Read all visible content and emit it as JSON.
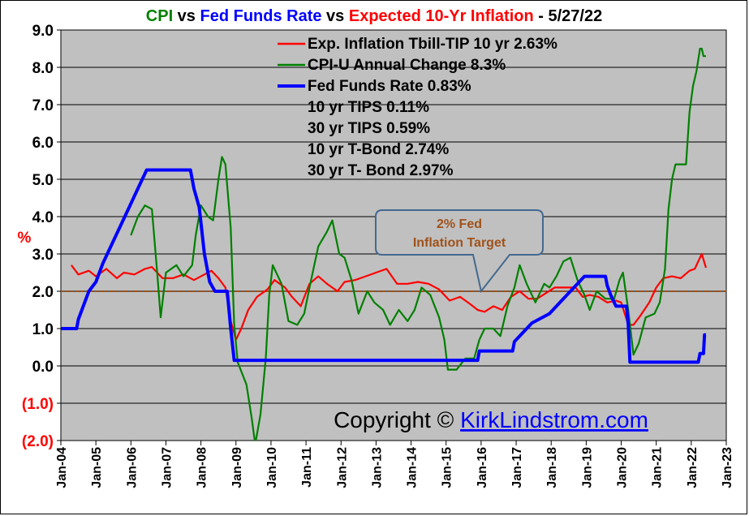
{
  "chart_data": {
    "type": "line",
    "title_parts": [
      {
        "text": "CPI",
        "color": "#008000"
      },
      {
        "text": " vs ",
        "color": "#000000"
      },
      {
        "text": "Fed Funds Rate",
        "color": "#0000ff"
      },
      {
        "text": " vs ",
        "color": "#000000"
      },
      {
        "text": "Expected 10-Yr Inflation",
        "color": "#ff0000"
      },
      {
        "text": " - 5/27/22",
        "color": "#000000"
      }
    ],
    "ylabel": "%",
    "ylim": [
      -2.0,
      9.0
    ],
    "yticks": [
      {
        "value": 9,
        "label": "9.0"
      },
      {
        "value": 8,
        "label": "8.0"
      },
      {
        "value": 7,
        "label": "7.0"
      },
      {
        "value": 6,
        "label": "6.0"
      },
      {
        "value": 5,
        "label": "5.0"
      },
      {
        "value": 4,
        "label": "4.0"
      },
      {
        "value": 3,
        "label": "3.0"
      },
      {
        "value": 2,
        "label": "2.0"
      },
      {
        "value": 1,
        "label": "1.0"
      },
      {
        "value": 0,
        "label": "0.0"
      },
      {
        "value": -1,
        "label": "(1.0)"
      },
      {
        "value": -2,
        "label": "(2.0)"
      }
    ],
    "xlim": [
      2004.0,
      2023.0
    ],
    "xticks": [
      {
        "value": 2004,
        "label": "Jan-04"
      },
      {
        "value": 2005,
        "label": "Jan-05"
      },
      {
        "value": 2006,
        "label": "Jan-06"
      },
      {
        "value": 2007,
        "label": "Jan-07"
      },
      {
        "value": 2008,
        "label": "Jan-08"
      },
      {
        "value": 2009,
        "label": "Jan-09"
      },
      {
        "value": 2010,
        "label": "Jan-10"
      },
      {
        "value": 2011,
        "label": "Jan-11"
      },
      {
        "value": 2012,
        "label": "Jan-12"
      },
      {
        "value": 2013,
        "label": "Jan-13"
      },
      {
        "value": 2014,
        "label": "Jan-14"
      },
      {
        "value": 2015,
        "label": "Jan-15"
      },
      {
        "value": 2016,
        "label": "Jan-16"
      },
      {
        "value": 2017,
        "label": "Jan-17"
      },
      {
        "value": 2018,
        "label": "Jan-18"
      },
      {
        "value": 2019,
        "label": "Jan-19"
      },
      {
        "value": 2020,
        "label": "Jan-20"
      },
      {
        "value": 2021,
        "label": "Jan-21"
      },
      {
        "value": 2022,
        "label": "Jan-22"
      },
      {
        "value": 2023,
        "label": "Jan-23"
      }
    ],
    "series": [
      {
        "name": "Exp. Inflation Tbill-TIP 10 yr 2.63%",
        "color": "#ff0000",
        "points": [
          [
            2004.3,
            2.7
          ],
          [
            2004.5,
            2.45
          ],
          [
            2004.8,
            2.55
          ],
          [
            2005.0,
            2.4
          ],
          [
            2005.3,
            2.6
          ],
          [
            2005.6,
            2.35
          ],
          [
            2005.8,
            2.5
          ],
          [
            2006.1,
            2.45
          ],
          [
            2006.4,
            2.6
          ],
          [
            2006.6,
            2.65
          ],
          [
            2006.9,
            2.35
          ],
          [
            2007.2,
            2.35
          ],
          [
            2007.5,
            2.45
          ],
          [
            2007.8,
            2.3
          ],
          [
            2008.1,
            2.45
          ],
          [
            2008.3,
            2.55
          ],
          [
            2008.5,
            2.35
          ],
          [
            2008.7,
            2.1
          ],
          [
            2008.85,
            1.2
          ],
          [
            2009.0,
            0.7
          ],
          [
            2009.15,
            1.0
          ],
          [
            2009.35,
            1.5
          ],
          [
            2009.6,
            1.85
          ],
          [
            2009.9,
            2.05
          ],
          [
            2010.1,
            2.3
          ],
          [
            2010.4,
            2.1
          ],
          [
            2010.6,
            1.85
          ],
          [
            2010.85,
            1.6
          ],
          [
            2011.1,
            2.2
          ],
          [
            2011.35,
            2.4
          ],
          [
            2011.6,
            2.2
          ],
          [
            2011.9,
            2.0
          ],
          [
            2012.1,
            2.25
          ],
          [
            2012.4,
            2.3
          ],
          [
            2012.7,
            2.4
          ],
          [
            2013.0,
            2.5
          ],
          [
            2013.3,
            2.6
          ],
          [
            2013.6,
            2.2
          ],
          [
            2013.9,
            2.2
          ],
          [
            2014.2,
            2.25
          ],
          [
            2014.5,
            2.2
          ],
          [
            2014.8,
            2.05
          ],
          [
            2015.1,
            1.75
          ],
          [
            2015.4,
            1.85
          ],
          [
            2015.7,
            1.65
          ],
          [
            2015.9,
            1.5
          ],
          [
            2016.1,
            1.45
          ],
          [
            2016.35,
            1.6
          ],
          [
            2016.6,
            1.5
          ],
          [
            2016.85,
            1.85
          ],
          [
            2017.1,
            2.0
          ],
          [
            2017.35,
            1.8
          ],
          [
            2017.6,
            1.8
          ],
          [
            2017.85,
            1.95
          ],
          [
            2018.1,
            2.1
          ],
          [
            2018.4,
            2.1
          ],
          [
            2018.7,
            2.1
          ],
          [
            2018.9,
            1.85
          ],
          [
            2019.1,
            1.9
          ],
          [
            2019.35,
            1.85
          ],
          [
            2019.6,
            1.7
          ],
          [
            2019.85,
            1.75
          ],
          [
            2020.0,
            1.7
          ],
          [
            2020.2,
            1.1
          ],
          [
            2020.35,
            1.1
          ],
          [
            2020.55,
            1.35
          ],
          [
            2020.8,
            1.7
          ],
          [
            2021.0,
            2.1
          ],
          [
            2021.2,
            2.35
          ],
          [
            2021.45,
            2.4
          ],
          [
            2021.7,
            2.35
          ],
          [
            2021.95,
            2.55
          ],
          [
            2022.1,
            2.6
          ],
          [
            2022.25,
            2.9
          ],
          [
            2022.3,
            3.0
          ],
          [
            2022.42,
            2.63
          ]
        ]
      },
      {
        "name": "CPI-U Annual Change 8.3%",
        "color": "#008000",
        "points": [
          [
            2006.0,
            3.5
          ],
          [
            2006.2,
            4.0
          ],
          [
            2006.4,
            4.3
          ],
          [
            2006.6,
            4.2
          ],
          [
            2006.75,
            2.5
          ],
          [
            2006.85,
            1.3
          ],
          [
            2007.0,
            2.5
          ],
          [
            2007.3,
            2.7
          ],
          [
            2007.5,
            2.4
          ],
          [
            2007.75,
            2.7
          ],
          [
            2007.85,
            3.5
          ],
          [
            2008.0,
            4.3
          ],
          [
            2008.2,
            4.0
          ],
          [
            2008.35,
            3.9
          ],
          [
            2008.5,
            5.0
          ],
          [
            2008.6,
            5.6
          ],
          [
            2008.7,
            5.4
          ],
          [
            2008.85,
            3.7
          ],
          [
            2008.95,
            1.1
          ],
          [
            2009.05,
            0.1
          ],
          [
            2009.3,
            -0.5
          ],
          [
            2009.45,
            -1.4
          ],
          [
            2009.55,
            -2.1
          ],
          [
            2009.7,
            -1.3
          ],
          [
            2009.85,
            0.2
          ],
          [
            2009.95,
            1.9
          ],
          [
            2010.05,
            2.7
          ],
          [
            2010.3,
            2.2
          ],
          [
            2010.5,
            1.2
          ],
          [
            2010.75,
            1.1
          ],
          [
            2010.95,
            1.4
          ],
          [
            2011.1,
            2.1
          ],
          [
            2011.35,
            3.2
          ],
          [
            2011.6,
            3.6
          ],
          [
            2011.75,
            3.9
          ],
          [
            2011.95,
            3.0
          ],
          [
            2012.1,
            2.9
          ],
          [
            2012.3,
            2.3
          ],
          [
            2012.5,
            1.4
          ],
          [
            2012.75,
            2.0
          ],
          [
            2012.95,
            1.7
          ],
          [
            2013.2,
            1.5
          ],
          [
            2013.4,
            1.1
          ],
          [
            2013.65,
            1.5
          ],
          [
            2013.9,
            1.2
          ],
          [
            2014.1,
            1.5
          ],
          [
            2014.3,
            2.1
          ],
          [
            2014.55,
            1.9
          ],
          [
            2014.8,
            1.3
          ],
          [
            2014.95,
            0.7
          ],
          [
            2015.05,
            -0.1
          ],
          [
            2015.3,
            -0.1
          ],
          [
            2015.55,
            0.2
          ],
          [
            2015.8,
            0.2
          ],
          [
            2015.95,
            0.7
          ],
          [
            2016.1,
            1.0
          ],
          [
            2016.35,
            1.0
          ],
          [
            2016.55,
            0.8
          ],
          [
            2016.75,
            1.6
          ],
          [
            2016.95,
            2.1
          ],
          [
            2017.1,
            2.7
          ],
          [
            2017.3,
            2.2
          ],
          [
            2017.55,
            1.7
          ],
          [
            2017.8,
            2.2
          ],
          [
            2017.95,
            2.1
          ],
          [
            2018.15,
            2.4
          ],
          [
            2018.35,
            2.8
          ],
          [
            2018.55,
            2.9
          ],
          [
            2018.75,
            2.3
          ],
          [
            2018.95,
            1.9
          ],
          [
            2019.1,
            1.5
          ],
          [
            2019.3,
            2.0
          ],
          [
            2019.55,
            1.8
          ],
          [
            2019.8,
            1.8
          ],
          [
            2019.95,
            2.3
          ],
          [
            2020.05,
            2.5
          ],
          [
            2020.2,
            1.5
          ],
          [
            2020.35,
            0.3
          ],
          [
            2020.5,
            0.6
          ],
          [
            2020.7,
            1.3
          ],
          [
            2020.95,
            1.4
          ],
          [
            2021.1,
            1.7
          ],
          [
            2021.25,
            2.6
          ],
          [
            2021.35,
            4.2
          ],
          [
            2021.45,
            5.0
          ],
          [
            2021.55,
            5.4
          ],
          [
            2021.85,
            5.4
          ],
          [
            2021.95,
            6.8
          ],
          [
            2022.05,
            7.5
          ],
          [
            2022.15,
            7.9
          ],
          [
            2022.25,
            8.5
          ],
          [
            2022.3,
            8.5
          ],
          [
            2022.35,
            8.3
          ],
          [
            2022.42,
            8.3
          ]
        ]
      },
      {
        "name": "Fed Funds Rate 0.83%",
        "color": "#0000ff",
        "points": [
          [
            2004.0,
            1.0
          ],
          [
            2004.45,
            1.0
          ],
          [
            2004.5,
            1.25
          ],
          [
            2004.6,
            1.5
          ],
          [
            2004.8,
            2.0
          ],
          [
            2005.0,
            2.25
          ],
          [
            2005.2,
            2.75
          ],
          [
            2005.45,
            3.25
          ],
          [
            2005.7,
            3.75
          ],
          [
            2005.95,
            4.25
          ],
          [
            2006.2,
            4.75
          ],
          [
            2006.45,
            5.25
          ],
          [
            2007.7,
            5.25
          ],
          [
            2007.8,
            4.75
          ],
          [
            2007.95,
            4.25
          ],
          [
            2008.1,
            3.0
          ],
          [
            2008.25,
            2.25
          ],
          [
            2008.4,
            2.0
          ],
          [
            2008.75,
            2.0
          ],
          [
            2008.8,
            1.5
          ],
          [
            2008.85,
            1.0
          ],
          [
            2008.95,
            0.15
          ],
          [
            2015.9,
            0.15
          ],
          [
            2015.95,
            0.4
          ],
          [
            2016.9,
            0.4
          ],
          [
            2016.95,
            0.65
          ],
          [
            2017.2,
            0.9
          ],
          [
            2017.45,
            1.15
          ],
          [
            2017.95,
            1.4
          ],
          [
            2018.2,
            1.65
          ],
          [
            2018.45,
            1.9
          ],
          [
            2018.7,
            2.15
          ],
          [
            2018.95,
            2.4
          ],
          [
            2019.55,
            2.4
          ],
          [
            2019.6,
            2.15
          ],
          [
            2019.7,
            1.9
          ],
          [
            2019.85,
            1.6
          ],
          [
            2020.15,
            1.6
          ],
          [
            2020.2,
            1.1
          ],
          [
            2020.25,
            0.1
          ],
          [
            2022.2,
            0.1
          ],
          [
            2022.25,
            0.33
          ],
          [
            2022.35,
            0.33
          ],
          [
            2022.38,
            0.83
          ],
          [
            2022.42,
            0.83
          ]
        ]
      }
    ],
    "legend": [
      {
        "text": "Exp. Inflation Tbill-TIP 10 yr 2.63%",
        "color": "#ff0000"
      },
      {
        "text": "CPI-U Annual Change 8.3%",
        "color": "#008000"
      },
      {
        "text": "Fed Funds Rate 0.83%",
        "color": "#0000ff"
      },
      {
        "text": "10 yr TIPS 0.11%",
        "color": null
      },
      {
        "text": "30 yr TIPS 0.59%",
        "color": null
      },
      {
        "text": "10 yr T-Bond 2.74%",
        "color": null
      },
      {
        "text": "30 yr T- Bond 2.97%",
        "color": null
      }
    ],
    "target_line": {
      "value": 2.0,
      "color": "#a0521a"
    },
    "callout": {
      "line1": "2% Fed",
      "line2": "Inflation Target",
      "anchor_x": 2016.0,
      "anchor_y": 2.0
    },
    "copyright": {
      "prefix": "Copyright © ",
      "link": "KirkLindstrom.com"
    },
    "colors": {
      "plot_bg": "#c0c0c0",
      "negative_tick": "#ff0000",
      "link": "#0000ff",
      "callout_border": "#44698f"
    }
  }
}
